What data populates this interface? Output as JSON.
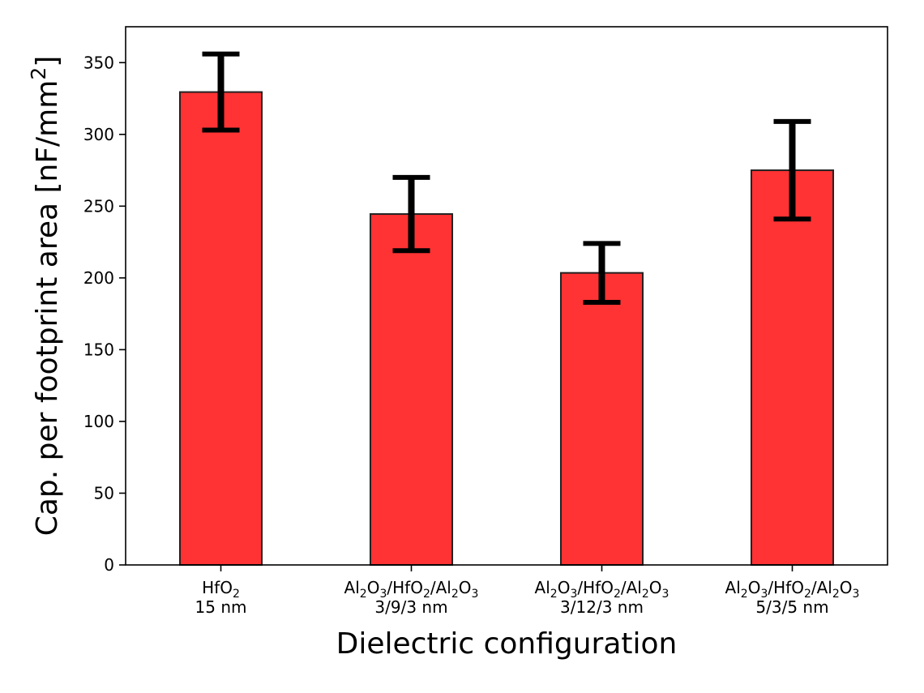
{
  "chart_data": {
    "type": "bar",
    "xlabel": "Dielectric configuration",
    "ylabel": "Cap. per footprint area [nF/mm²]",
    "ylim": [
      0,
      375
    ],
    "yticks": [
      0,
      50,
      100,
      150,
      200,
      250,
      300,
      350
    ],
    "grid": false,
    "bar_color": "#ff3333",
    "bar_edge_color": "#222222",
    "errorbar_color": "#000000",
    "categories": [
      "HfO₂\n15 nm",
      "Al₂O₃/HfO₂/Al₂O₃\n3/9/3 nm",
      "Al₂O₃/HfO₂/Al₂O₃\n3/12/3 nm",
      "Al₂O₃/HfO₂/Al₂O₃\n5/3/5 nm"
    ],
    "category_lines": [
      [
        [
          {
            "t": "HfO"
          },
          {
            "t": "2",
            "sub": true
          }
        ],
        [
          {
            "t": "15 nm"
          }
        ]
      ],
      [
        [
          {
            "t": "Al"
          },
          {
            "t": "2",
            "sub": true
          },
          {
            "t": "O"
          },
          {
            "t": "3",
            "sub": true
          },
          {
            "t": "/HfO"
          },
          {
            "t": "2",
            "sub": true
          },
          {
            "t": "/Al"
          },
          {
            "t": "2",
            "sub": true
          },
          {
            "t": "O"
          },
          {
            "t": "3",
            "sub": true
          }
        ],
        [
          {
            "t": "3/9/3 nm"
          }
        ]
      ],
      [
        [
          {
            "t": "Al"
          },
          {
            "t": "2",
            "sub": true
          },
          {
            "t": "O"
          },
          {
            "t": "3",
            "sub": true
          },
          {
            "t": "/HfO"
          },
          {
            "t": "2",
            "sub": true
          },
          {
            "t": "/Al"
          },
          {
            "t": "2",
            "sub": true
          },
          {
            "t": "O"
          },
          {
            "t": "3",
            "sub": true
          }
        ],
        [
          {
            "t": "3/12/3 nm"
          }
        ]
      ],
      [
        [
          {
            "t": "Al"
          },
          {
            "t": "2",
            "sub": true
          },
          {
            "t": "O"
          },
          {
            "t": "3",
            "sub": true
          },
          {
            "t": "/HfO"
          },
          {
            "t": "2",
            "sub": true
          },
          {
            "t": "/Al"
          },
          {
            "t": "2",
            "sub": true
          },
          {
            "t": "O"
          },
          {
            "t": "3",
            "sub": true
          }
        ],
        [
          {
            "t": "5/3/5 nm"
          }
        ]
      ]
    ],
    "values": [
      329.5,
      244.5,
      203.5,
      275
    ],
    "error_low": [
      303,
      219,
      183,
      241
    ],
    "error_high": [
      356,
      270,
      224,
      309
    ]
  }
}
